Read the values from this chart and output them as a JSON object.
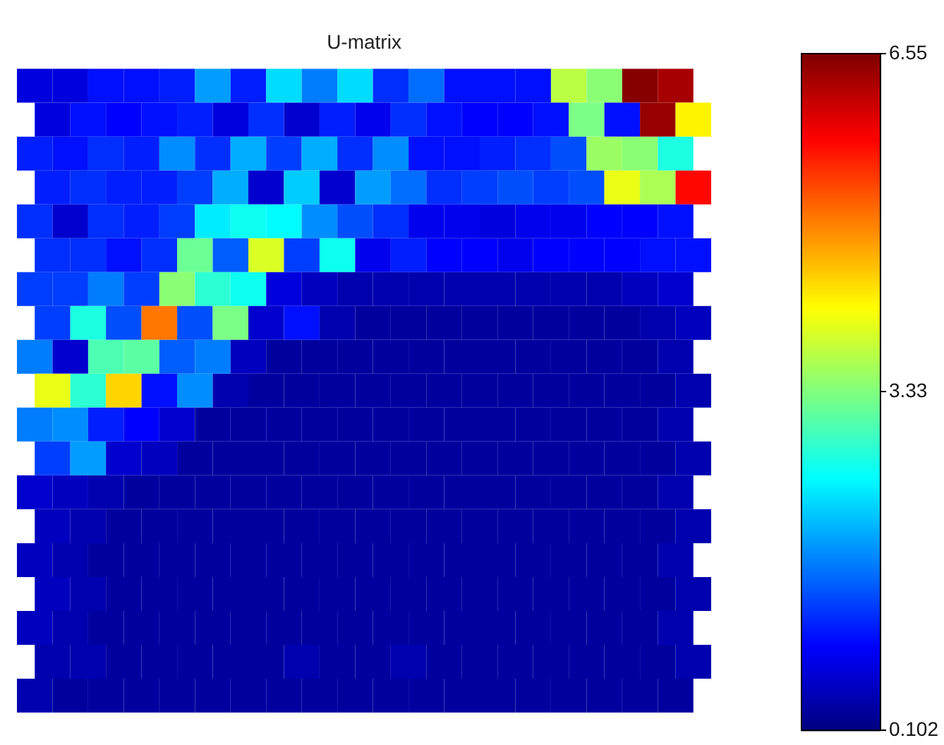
{
  "chart_data": {
    "type": "heatmap",
    "title": "U-matrix",
    "categories": [
      null,
      null,
      null,
      null,
      null,
      null,
      null,
      null,
      null,
      null,
      null,
      null,
      null,
      null,
      null,
      null,
      null,
      null,
      null
    ],
    "y_categories": [
      null,
      null,
      null,
      null,
      null,
      null,
      null,
      null,
      null,
      null,
      null,
      null,
      null,
      null,
      null,
      null,
      null,
      null,
      null
    ],
    "cells": [
      [
        0.7,
        0.7,
        1.0,
        1.0,
        1.1,
        1.9,
        1.1,
        2.3,
        1.7,
        2.3,
        1.2,
        1.6,
        1.0,
        1.0,
        1.0,
        3.7,
        3.4,
        6.5,
        6.3
      ],
      [
        0.7,
        1.0,
        0.9,
        1.0,
        1.1,
        0.7,
        1.2,
        0.6,
        1.1,
        0.8,
        1.2,
        1.0,
        0.9,
        0.9,
        1.0,
        3.3,
        1.0,
        6.4,
        4.2
      ],
      [
        1.1,
        1.0,
        1.2,
        1.1,
        1.8,
        1.2,
        2.0,
        1.3,
        2.0,
        1.2,
        1.8,
        1.0,
        1.0,
        1.1,
        1.2,
        1.4,
        3.5,
        3.4,
        2.7
      ],
      [
        1.1,
        1.2,
        1.1,
        1.1,
        1.3,
        2.0,
        0.6,
        2.2,
        0.6,
        1.9,
        1.6,
        1.2,
        1.3,
        1.4,
        1.3,
        1.4,
        4.0,
        3.6,
        5.7
      ],
      [
        1.2,
        0.6,
        1.2,
        1.1,
        1.3,
        2.4,
        2.6,
        2.5,
        1.8,
        1.4,
        1.2,
        0.8,
        0.8,
        0.7,
        0.8,
        0.8,
        0.9,
        0.9,
        1.0
      ],
      [
        1.2,
        1.2,
        1.0,
        1.2,
        3.2,
        1.5,
        3.9,
        1.3,
        2.6,
        0.8,
        1.1,
        0.9,
        0.9,
        0.8,
        0.9,
        0.9,
        0.9,
        1.0,
        1.0
      ],
      [
        1.3,
        1.3,
        1.7,
        1.3,
        3.4,
        2.8,
        2.6,
        0.7,
        0.5,
        0.4,
        0.4,
        0.4,
        0.4,
        0.4,
        0.4,
        0.4,
        0.4,
        0.5,
        0.6
      ],
      [
        1.3,
        2.7,
        1.4,
        5.0,
        1.4,
        3.3,
        0.6,
        1.0,
        0.4,
        0.3,
        0.3,
        0.3,
        0.3,
        0.3,
        0.3,
        0.3,
        0.3,
        0.4,
        0.5
      ],
      [
        1.7,
        0.6,
        3.0,
        3.1,
        1.5,
        1.7,
        0.5,
        0.3,
        0.3,
        0.3,
        0.3,
        0.3,
        0.3,
        0.3,
        0.3,
        0.3,
        0.3,
        0.3,
        0.4
      ],
      [
        4.0,
        2.8,
        4.4,
        1.0,
        1.8,
        0.4,
        0.3,
        0.3,
        0.3,
        0.3,
        0.3,
        0.3,
        0.3,
        0.3,
        0.3,
        0.3,
        0.3,
        0.3,
        0.4
      ],
      [
        1.7,
        1.8,
        1.1,
        0.9,
        0.6,
        0.3,
        0.3,
        0.3,
        0.3,
        0.3,
        0.3,
        0.3,
        0.3,
        0.3,
        0.3,
        0.3,
        0.3,
        0.3,
        0.4
      ],
      [
        1.3,
        1.9,
        0.6,
        0.5,
        0.3,
        0.3,
        0.3,
        0.3,
        0.3,
        0.3,
        0.3,
        0.3,
        0.3,
        0.3,
        0.3,
        0.3,
        0.3,
        0.3,
        0.4
      ],
      [
        0.6,
        0.5,
        0.4,
        0.3,
        0.3,
        0.3,
        0.3,
        0.3,
        0.3,
        0.3,
        0.3,
        0.3,
        0.3,
        0.3,
        0.3,
        0.3,
        0.3,
        0.3,
        0.4
      ],
      [
        0.5,
        0.4,
        0.3,
        0.3,
        0.3,
        0.3,
        0.3,
        0.3,
        0.3,
        0.3,
        0.3,
        0.3,
        0.3,
        0.3,
        0.3,
        0.3,
        0.3,
        0.3,
        0.4
      ],
      [
        0.5,
        0.4,
        0.3,
        0.3,
        0.3,
        0.3,
        0.3,
        0.3,
        0.3,
        0.3,
        0.3,
        0.3,
        0.3,
        0.3,
        0.3,
        0.3,
        0.3,
        0.3,
        0.4
      ],
      [
        0.5,
        0.4,
        0.3,
        0.3,
        0.3,
        0.3,
        0.3,
        0.3,
        0.3,
        0.3,
        0.3,
        0.3,
        0.3,
        0.3,
        0.3,
        0.3,
        0.3,
        0.3,
        0.4
      ],
      [
        0.5,
        0.4,
        0.3,
        0.3,
        0.3,
        0.3,
        0.3,
        0.3,
        0.3,
        0.3,
        0.3,
        0.3,
        0.3,
        0.3,
        0.3,
        0.3,
        0.3,
        0.3,
        0.4
      ],
      [
        0.4,
        0.4,
        0.3,
        0.3,
        0.3,
        0.3,
        0.3,
        0.4,
        0.3,
        0.3,
        0.4,
        0.3,
        0.3,
        0.3,
        0.3,
        0.3,
        0.3,
        0.3,
        0.4
      ],
      [
        0.4,
        0.3,
        0.3,
        0.3,
        0.3,
        0.3,
        0.3,
        0.3,
        0.3,
        0.3,
        0.3,
        0.3,
        0.3,
        0.3,
        0.3,
        0.3,
        0.3,
        0.3,
        0.3
      ]
    ],
    "clim": [
      0.102,
      6.55
    ],
    "cticks": [
      0.102,
      3.33,
      6.55
    ]
  }
}
